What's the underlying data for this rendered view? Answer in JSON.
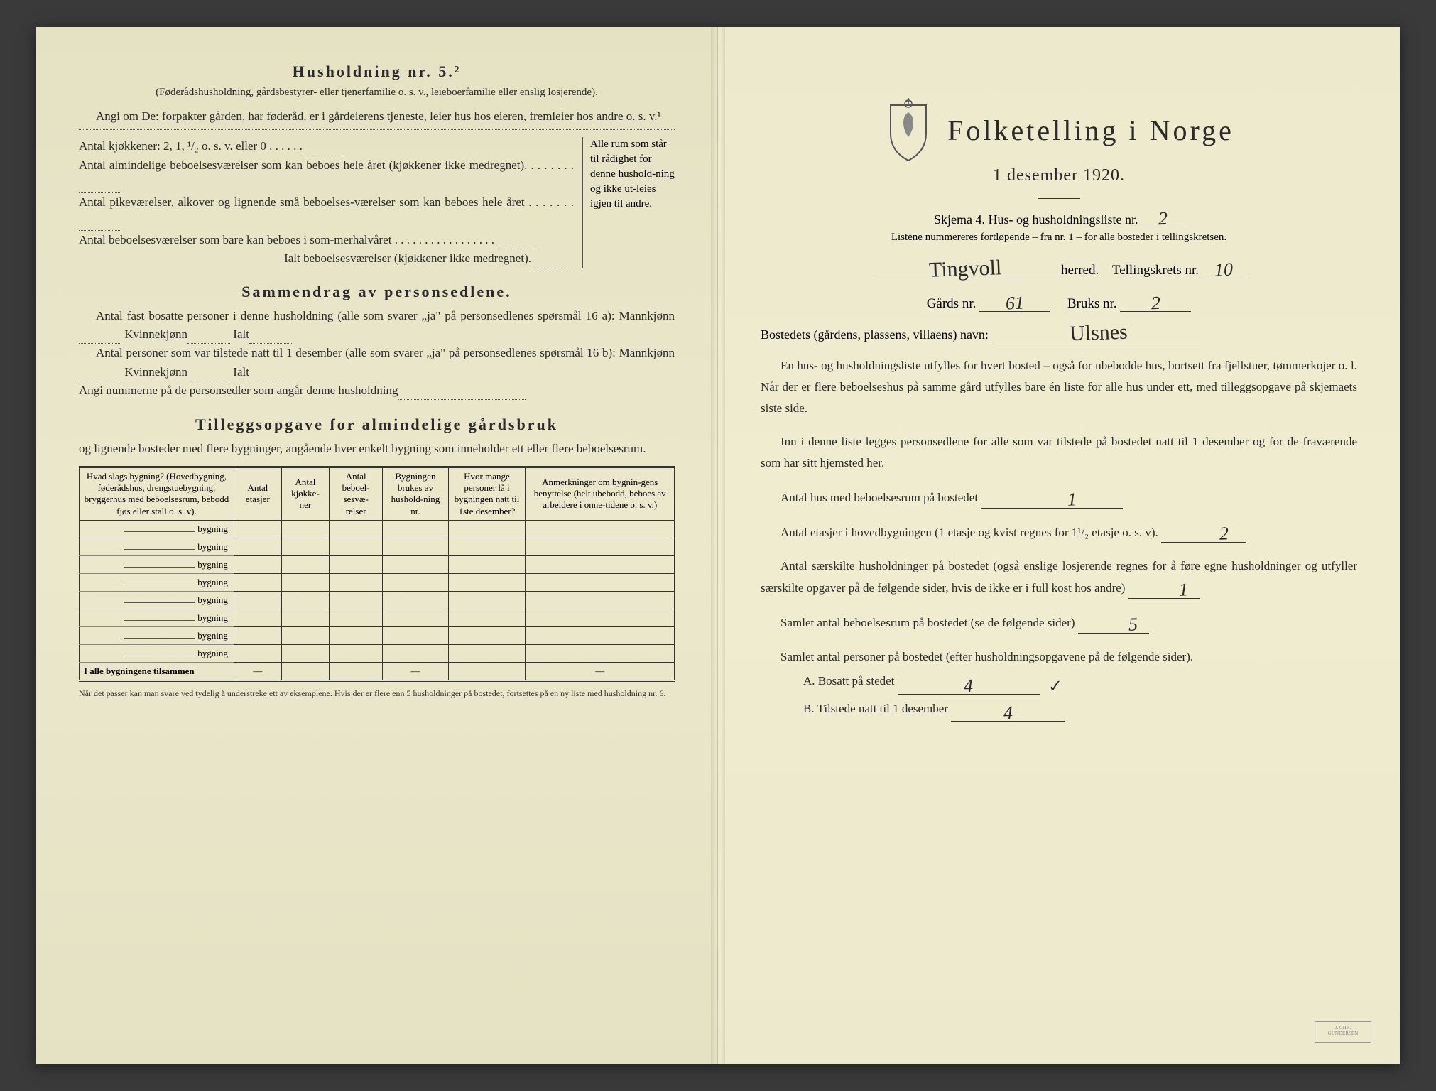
{
  "left": {
    "section5_title": "Husholdning nr. 5.²",
    "section5_sub": "(Føderådshusholdning, gårdsbestyrer- eller tjenerfamilie o. s. v., leieboerfamilie eller enslig losjerende).",
    "angi_om": "Angi om De: forpakter gården, har føderåd, er i gårdeierens tjeneste, leier hus hos eieren, fremleier hos andre o. s. v.¹",
    "kitchens": "Antal kjøkkener: 2, 1, ¹/₂ o. s. v. eller 0 . . . . . .",
    "rooms1": "Antal almindelige beboelsesværelser som kan beboes hele året (kjøkkener ikke medregnet). . . . . . . .",
    "rooms2": "Antal pikeværelser, alkover og lignende små beboelses-værelser som kan beboes hele året . . . . . . .",
    "rooms3": "Antal beboelsesværelser som bare kan beboes i som-merhalvåret . . . . . . . . . . . . . . . . .",
    "rooms_total": "Ialt beboelsesværelser (kjøkkener ikke medregnet).",
    "room_margin": "Alle rum som står til rådighet for denne hushold-ning og ikke ut-leies igjen til andre.",
    "sammendrag_title": "Sammendrag av personsedlene.",
    "samm1": "Antal fast bosatte personer i denne husholdning (alle som svarer „ja\" på personsedlenes spørsmål 16 a): Mannkjønn",
    "kvinnekjonn": "Kvinnekjønn",
    "ialt": "Ialt",
    "samm2": "Antal personer som var tilstede natt til 1 desember (alle som svarer „ja\" på personsedlenes spørsmål 16 b): Mannkjønn",
    "samm3": "Angi nummerne på de personsedler som angår denne husholdning",
    "tillegg_title": "Tilleggsopgave for almindelige gårdsbruk",
    "tillegg_sub": "og lignende bosteder med flere bygninger, angående hver enkelt bygning som inneholder ett eller flere beboelsesrum.",
    "table": {
      "headers": [
        "Hvad slags bygning?\n(Hovedbygning, føderådshus, drengstuebygning, bryggerhus med beboelsesrum, bebodd fjøs eller stall o. s. v).",
        "Antal etasjer",
        "Antal kjøkke-ner",
        "Antal beboel-sesvæ-relser",
        "Bygningen brukes av hushold-ning nr.",
        "Hvor mange personer lå i bygningen natt til 1ste desember?",
        "Anmerkninger om bygnin-gens benyttelse (helt ubebodd, beboes av arbeidere i onne-tidene o. s. v.)"
      ],
      "row_label": "bygning",
      "total_row": "I alle bygningene tilsammen",
      "row_count": 8
    },
    "footnote": "Når det passer kan man svare ved tydelig å understreke ett av eksemplene.\nHvis der er flere enn 5 husholdninger på bostedet, fortsettes på en ny liste med husholdning nr. 6."
  },
  "right": {
    "main_title": "Folketelling i Norge",
    "date": "1 desember 1920.",
    "skjema": "Skjema 4. Hus- og husholdningsliste nr.",
    "skjema_value": "2",
    "list_note": "Listene nummereres fortløpende – fra nr. 1 – for alle bosteder i tellingskretsen.",
    "herred_value": "Tingvoll",
    "herred_label": "herred.",
    "tellingskrets_label": "Tellingskrets nr.",
    "tellingskrets_value": "10",
    "gards_label": "Gårds nr.",
    "gards_value": "61",
    "bruks_label": "Bruks nr.",
    "bruks_value": "2",
    "bosted_label": "Bostedets (gårdens, plassens, villaens) navn:",
    "bosted_value": "Ulsnes",
    "para1": "En hus- og husholdningsliste utfylles for hvert bosted – også for ubebodde hus, bortsett fra fjellstuer, tømmerkojer o. l. Når der er flere beboelseshus på samme gård utfylles bare én liste for alle hus under ett, med tilleggsopgave på skjemaets siste side.",
    "para2": "Inn i denne liste legges personsedlene for alle som var tilstede på bostedet natt til 1 desember og for de fraværende som har sitt hjemsted her.",
    "q1_label": "Antal hus med beboelsesrum på bostedet",
    "q1_value": "1",
    "q2_label_a": "Antal etasjer i hovedbygningen (1 etasje og kvist regnes for 1¹/₂ etasje o. s. v).",
    "q2_value": "2",
    "q3_label": "Antal særskilte husholdninger på bostedet (også enslige losjerende regnes for å føre egne husholdninger og utfyller særskilte opgaver på de følgende sider, hvis de ikke er i full kost hos andre)",
    "q3_value": "1",
    "q4_label": "Samlet antal beboelsesrum på bostedet (se de følgende sider)",
    "q4_value": "5",
    "q5_label": "Samlet antal personer på bostedet (efter husholdningsopgavene på de følgende sider).",
    "q5a_label": "A. Bosatt på stedet",
    "q5a_value": "4",
    "q5b_label": "B. Tilstede natt til 1 desember",
    "q5b_value": "4"
  },
  "colors": {
    "paper": "#ece8cc",
    "ink": "#2a2a2a",
    "handwriting": "#2a2a2a"
  }
}
